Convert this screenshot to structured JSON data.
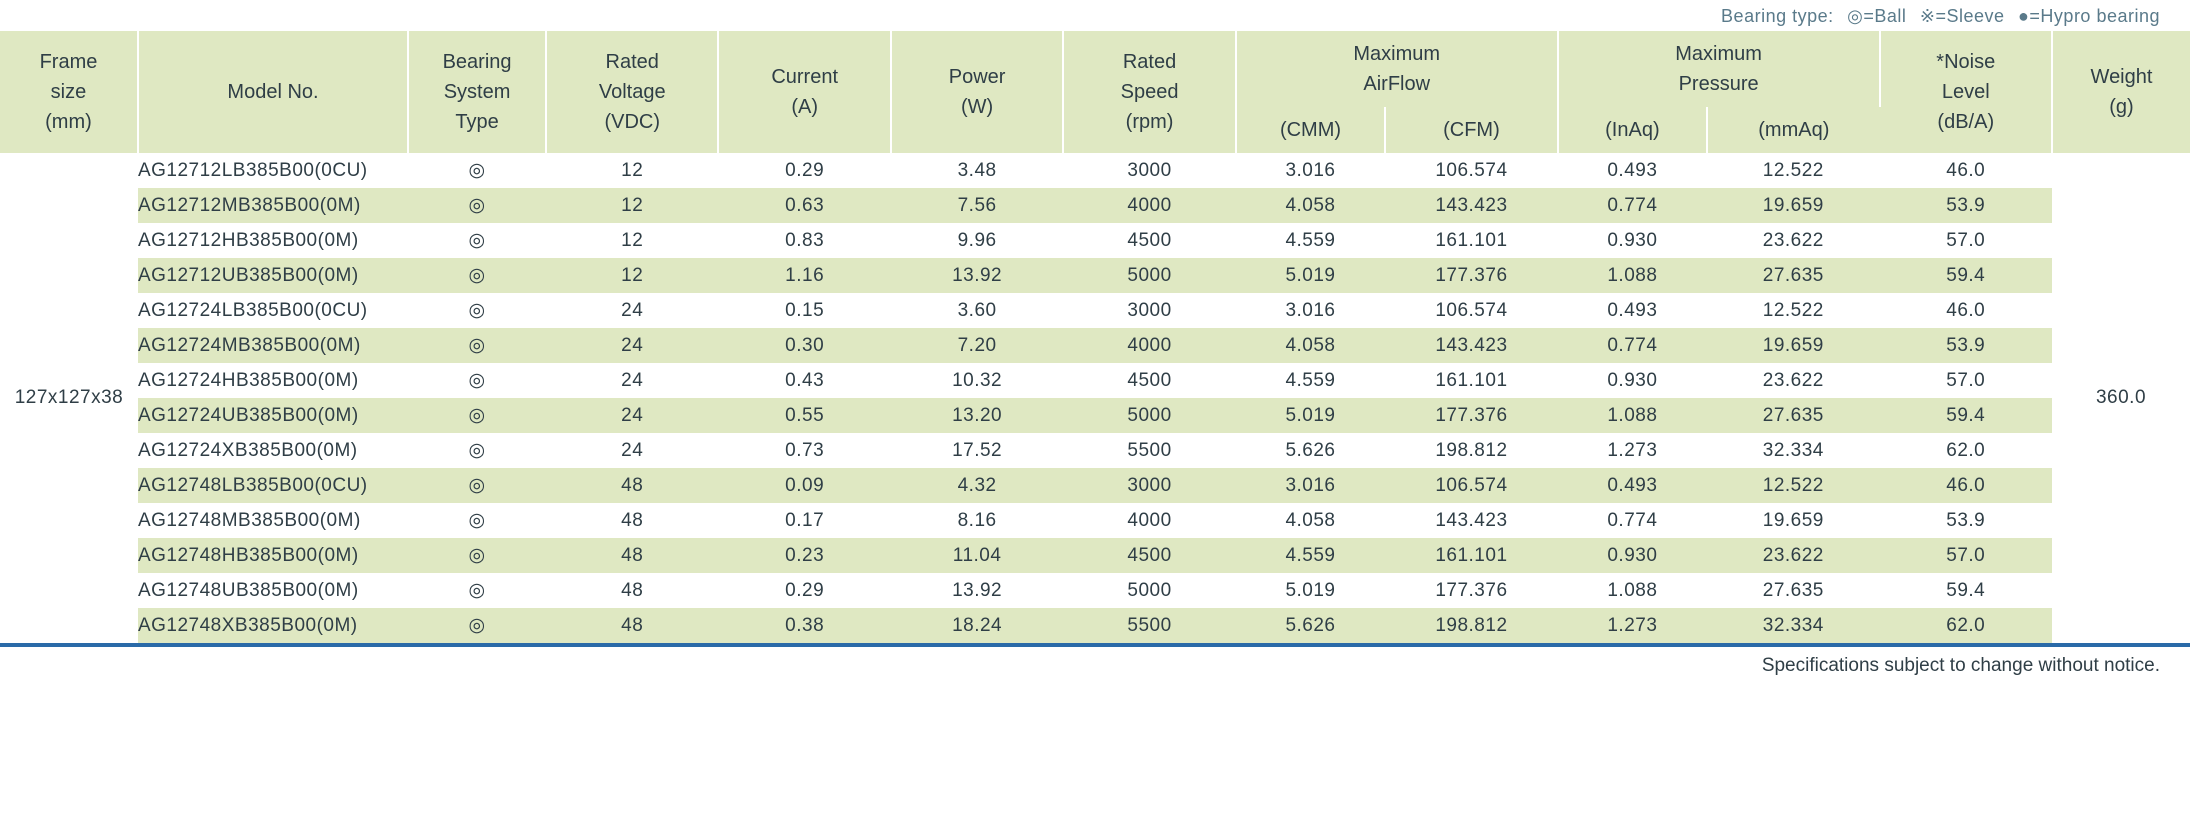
{
  "legend": {
    "prefix": "Bearing type:",
    "items": [
      "◎=Ball",
      "※=Sleeve",
      "●=Hypro bearing"
    ]
  },
  "columns": [
    {
      "line1": "Frame",
      "line2": "size",
      "line3": "(mm)"
    },
    {
      "line1": "",
      "line2": "Model No.",
      "line3": ""
    },
    {
      "line1": "Bearing",
      "line2": "System",
      "line3": "Type"
    },
    {
      "line1": "Rated",
      "line2": "Voltage",
      "line3": "(VDC)"
    },
    {
      "line1": "",
      "line2": "Current",
      "line3": "(A)"
    },
    {
      "line1": "",
      "line2": "Power",
      "line3": "(W)"
    },
    {
      "line1": "Rated",
      "line2": "Speed",
      "line3": "(rpm)"
    },
    {
      "line1": "Maximum",
      "line2": "AirFlow",
      "sub1": "(CMM)",
      "sub2": "(CFM)"
    },
    {
      "line1": "Maximum",
      "line2": "Pressure",
      "sub1": "(InAq)",
      "sub2": "(mmAq)"
    },
    {
      "line1": "*Noise",
      "line2": "Level",
      "line3": "(dB/A)"
    },
    {
      "line1": "",
      "line2": "Weight",
      "line3": "(g)"
    }
  ],
  "frame_size": "127x127x38",
  "weight": "360.0",
  "bearing_symbol": "◎",
  "rows": [
    {
      "model": "AG12712LB385B00(0CU)",
      "vdc": "12",
      "a": "0.29",
      "w": "3.48",
      "rpm": "3000",
      "cmm": "3.016",
      "cfm": "106.574",
      "inaq": "0.493",
      "mmaq": "12.522",
      "db": "46.0"
    },
    {
      "model": "AG12712MB385B00(0M)",
      "vdc": "12",
      "a": "0.63",
      "w": "7.56",
      "rpm": "4000",
      "cmm": "4.058",
      "cfm": "143.423",
      "inaq": "0.774",
      "mmaq": "19.659",
      "db": "53.9"
    },
    {
      "model": "AG12712HB385B00(0M)",
      "vdc": "12",
      "a": "0.83",
      "w": "9.96",
      "rpm": "4500",
      "cmm": "4.559",
      "cfm": "161.101",
      "inaq": "0.930",
      "mmaq": "23.622",
      "db": "57.0"
    },
    {
      "model": "AG12712UB385B00(0M)",
      "vdc": "12",
      "a": "1.16",
      "w": "13.92",
      "rpm": "5000",
      "cmm": "5.019",
      "cfm": "177.376",
      "inaq": "1.088",
      "mmaq": "27.635",
      "db": "59.4"
    },
    {
      "model": "AG12724LB385B00(0CU)",
      "vdc": "24",
      "a": "0.15",
      "w": "3.60",
      "rpm": "3000",
      "cmm": "3.016",
      "cfm": "106.574",
      "inaq": "0.493",
      "mmaq": "12.522",
      "db": "46.0"
    },
    {
      "model": "AG12724MB385B00(0M)",
      "vdc": "24",
      "a": "0.30",
      "w": "7.20",
      "rpm": "4000",
      "cmm": "4.058",
      "cfm": "143.423",
      "inaq": "0.774",
      "mmaq": "19.659",
      "db": "53.9"
    },
    {
      "model": "AG12724HB385B00(0M)",
      "vdc": "24",
      "a": "0.43",
      "w": "10.32",
      "rpm": "4500",
      "cmm": "4.559",
      "cfm": "161.101",
      "inaq": "0.930",
      "mmaq": "23.622",
      "db": "57.0"
    },
    {
      "model": "AG12724UB385B00(0M)",
      "vdc": "24",
      "a": "0.55",
      "w": "13.20",
      "rpm": "5000",
      "cmm": "5.019",
      "cfm": "177.376",
      "inaq": "1.088",
      "mmaq": "27.635",
      "db": "59.4"
    },
    {
      "model": "AG12724XB385B00(0M)",
      "vdc": "24",
      "a": "0.73",
      "w": "17.52",
      "rpm": "5500",
      "cmm": "5.626",
      "cfm": "198.812",
      "inaq": "1.273",
      "mmaq": "32.334",
      "db": "62.0"
    },
    {
      "model": "AG12748LB385B00(0CU)",
      "vdc": "48",
      "a": "0.09",
      "w": "4.32",
      "rpm": "3000",
      "cmm": "3.016",
      "cfm": "106.574",
      "inaq": "0.493",
      "mmaq": "12.522",
      "db": "46.0"
    },
    {
      "model": "AG12748MB385B00(0M)",
      "vdc": "48",
      "a": "0.17",
      "w": "8.16",
      "rpm": "4000",
      "cmm": "4.058",
      "cfm": "143.423",
      "inaq": "0.774",
      "mmaq": "19.659",
      "db": "53.9"
    },
    {
      "model": "AG12748HB385B00(0M)",
      "vdc": "48",
      "a": "0.23",
      "w": "11.04",
      "rpm": "4500",
      "cmm": "4.559",
      "cfm": "161.101",
      "inaq": "0.930",
      "mmaq": "23.622",
      "db": "57.0"
    },
    {
      "model": "AG12748UB385B00(0M)",
      "vdc": "48",
      "a": "0.29",
      "w": "13.92",
      "rpm": "5000",
      "cmm": "5.019",
      "cfm": "177.376",
      "inaq": "1.088",
      "mmaq": "27.635",
      "db": "59.4"
    },
    {
      "model": "AG12748XB385B00(0M)",
      "vdc": "48",
      "a": "0.38",
      "w": "18.24",
      "rpm": "5500",
      "cmm": "5.626",
      "cfm": "198.812",
      "inaq": "1.273",
      "mmaq": "32.334",
      "db": "62.0"
    }
  ],
  "footer_note": "Specifications subject to change without notice.",
  "colors": {
    "header_bg": "#dfe8c2",
    "row_alt_bg": "#dfe8c2",
    "rule": "#2a6aa8",
    "text": "#2f3e46",
    "legend_text": "#5a7a8a"
  }
}
